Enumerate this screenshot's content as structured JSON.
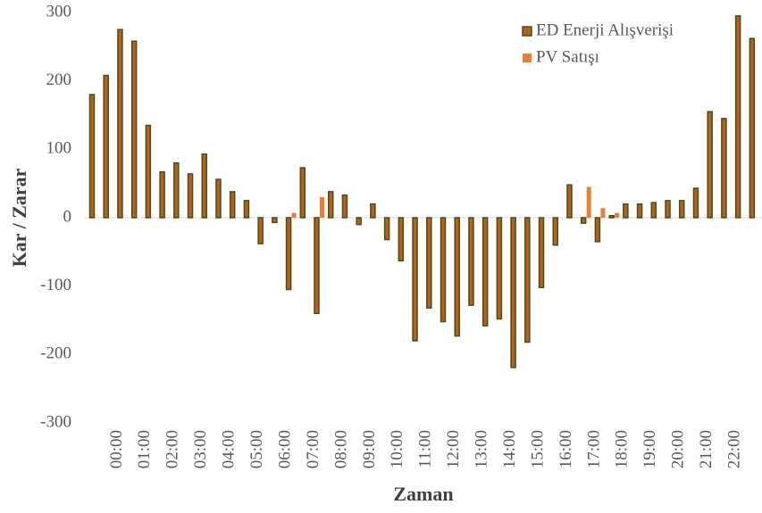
{
  "chart_data": {
    "type": "bar",
    "x_label": "Zaman",
    "y_label": "Kar / Zarar",
    "categories": [
      null,
      null,
      "00:00",
      null,
      "01:00",
      null,
      "02:00",
      null,
      "03:00",
      null,
      "04:00",
      null,
      "05:00",
      null,
      "06:00",
      null,
      "07:00",
      null,
      "08:00",
      null,
      "09:00",
      null,
      "10:00",
      null,
      "11:00",
      null,
      "12:00",
      null,
      "13:00",
      null,
      "14:00",
      null,
      "15:00",
      null,
      "16:00",
      null,
      "17:00",
      null,
      "18:00",
      null,
      "19:00",
      null,
      "20:00",
      null,
      "21:00",
      null,
      "22:00",
      null
    ],
    "series": [
      {
        "name": "ED Enerji Alışverişi",
        "color": "#c55a11",
        "edge": "#375623",
        "values": [
          180,
          208,
          275,
          258,
          135,
          67,
          80,
          64,
          93,
          56,
          38,
          25,
          -38,
          -7,
          -105,
          73,
          -140,
          38,
          33,
          -10,
          20,
          -32,
          -63,
          -180,
          -132,
          -152,
          -173,
          -128,
          -158,
          -148,
          -219,
          -182,
          -102,
          -40,
          48,
          -8,
          -35,
          3,
          20,
          20,
          22,
          25,
          25,
          43,
          155,
          145,
          295,
          262
        ]
      },
      {
        "name": "PV Satışı",
        "color": "#ed7d31",
        "values": [
          0,
          0,
          0,
          0,
          0,
          0,
          0,
          0,
          0,
          0,
          0,
          0,
          0,
          0,
          7,
          0,
          30,
          0,
          0,
          0,
          0,
          0,
          0,
          0,
          0,
          0,
          0,
          0,
          0,
          0,
          0,
          0,
          0,
          0,
          0,
          45,
          14,
          7,
          0,
          0,
          0,
          0,
          0,
          0,
          0,
          0,
          0,
          0
        ]
      }
    ],
    "ylim": [
      -300,
      300
    ],
    "yticks": [
      -300,
      -200,
      -100,
      0,
      100,
      200,
      300
    ],
    "legend": "top-right"
  }
}
